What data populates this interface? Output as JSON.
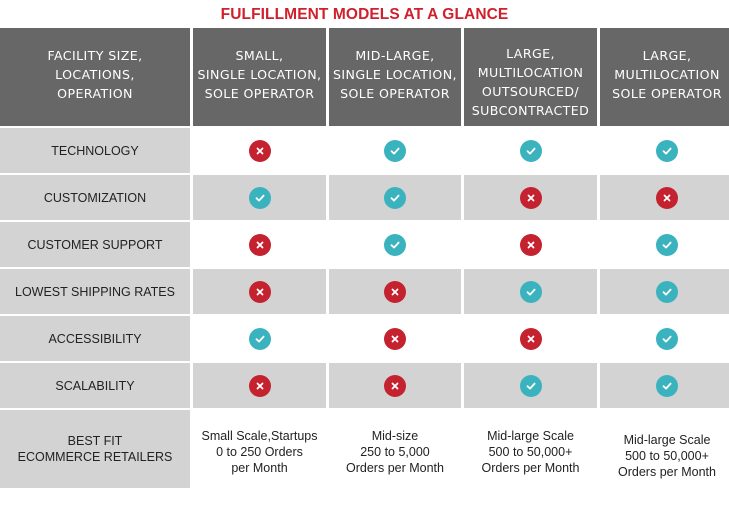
{
  "title": "FULFILLMENT MODELS AT A GLANCE",
  "colors": {
    "title": "#d0202b",
    "header_bg": "#676767",
    "shade_bg": "#d3d3d3",
    "check": "#3bb3bf",
    "cross": "#c5222f"
  },
  "header": [
    "FACILITY SIZE,\nLOCATIONS,\nOPERATION",
    "SMALL,\nSINGLE LOCATION,\nSOLE OPERATOR",
    "MID-LARGE,\nSINGLE LOCATION,\nSOLE OPERATOR",
    "LARGE,\nMULTILOCATION\nOUTSOURCED/\nSUBCONTRACTED",
    "LARGE,\nMULTILOCATION\nSOLE OPERATOR"
  ],
  "rows": [
    {
      "label": "TECHNOLOGY",
      "values": [
        "cross",
        "check",
        "check",
        "check"
      ]
    },
    {
      "label": "CUSTOMIZATION",
      "values": [
        "check",
        "check",
        "cross",
        "cross"
      ]
    },
    {
      "label": "CUSTOMER SUPPORT",
      "values": [
        "cross",
        "check",
        "cross",
        "check"
      ]
    },
    {
      "label": "LOWEST SHIPPING RATES",
      "values": [
        "cross",
        "cross",
        "check",
        "check"
      ]
    },
    {
      "label": "ACCESSIBILITY",
      "values": [
        "check",
        "cross",
        "cross",
        "check"
      ]
    },
    {
      "label": "SCALABILITY",
      "values": [
        "cross",
        "cross",
        "check",
        "check"
      ]
    }
  ],
  "best_fit": {
    "label": "BEST FIT\nECOMMERCE RETAILERS",
    "values": [
      "Small Scale,Startups\n0 to 250 Orders\nper Month",
      "Mid-size\n250 to 5,000\nOrders per Month",
      "Mid-large Scale\n500 to 50,000+\nOrders per Month",
      "Mid-large Scale\n500 to 50,000+\nOrders per Month"
    ]
  }
}
